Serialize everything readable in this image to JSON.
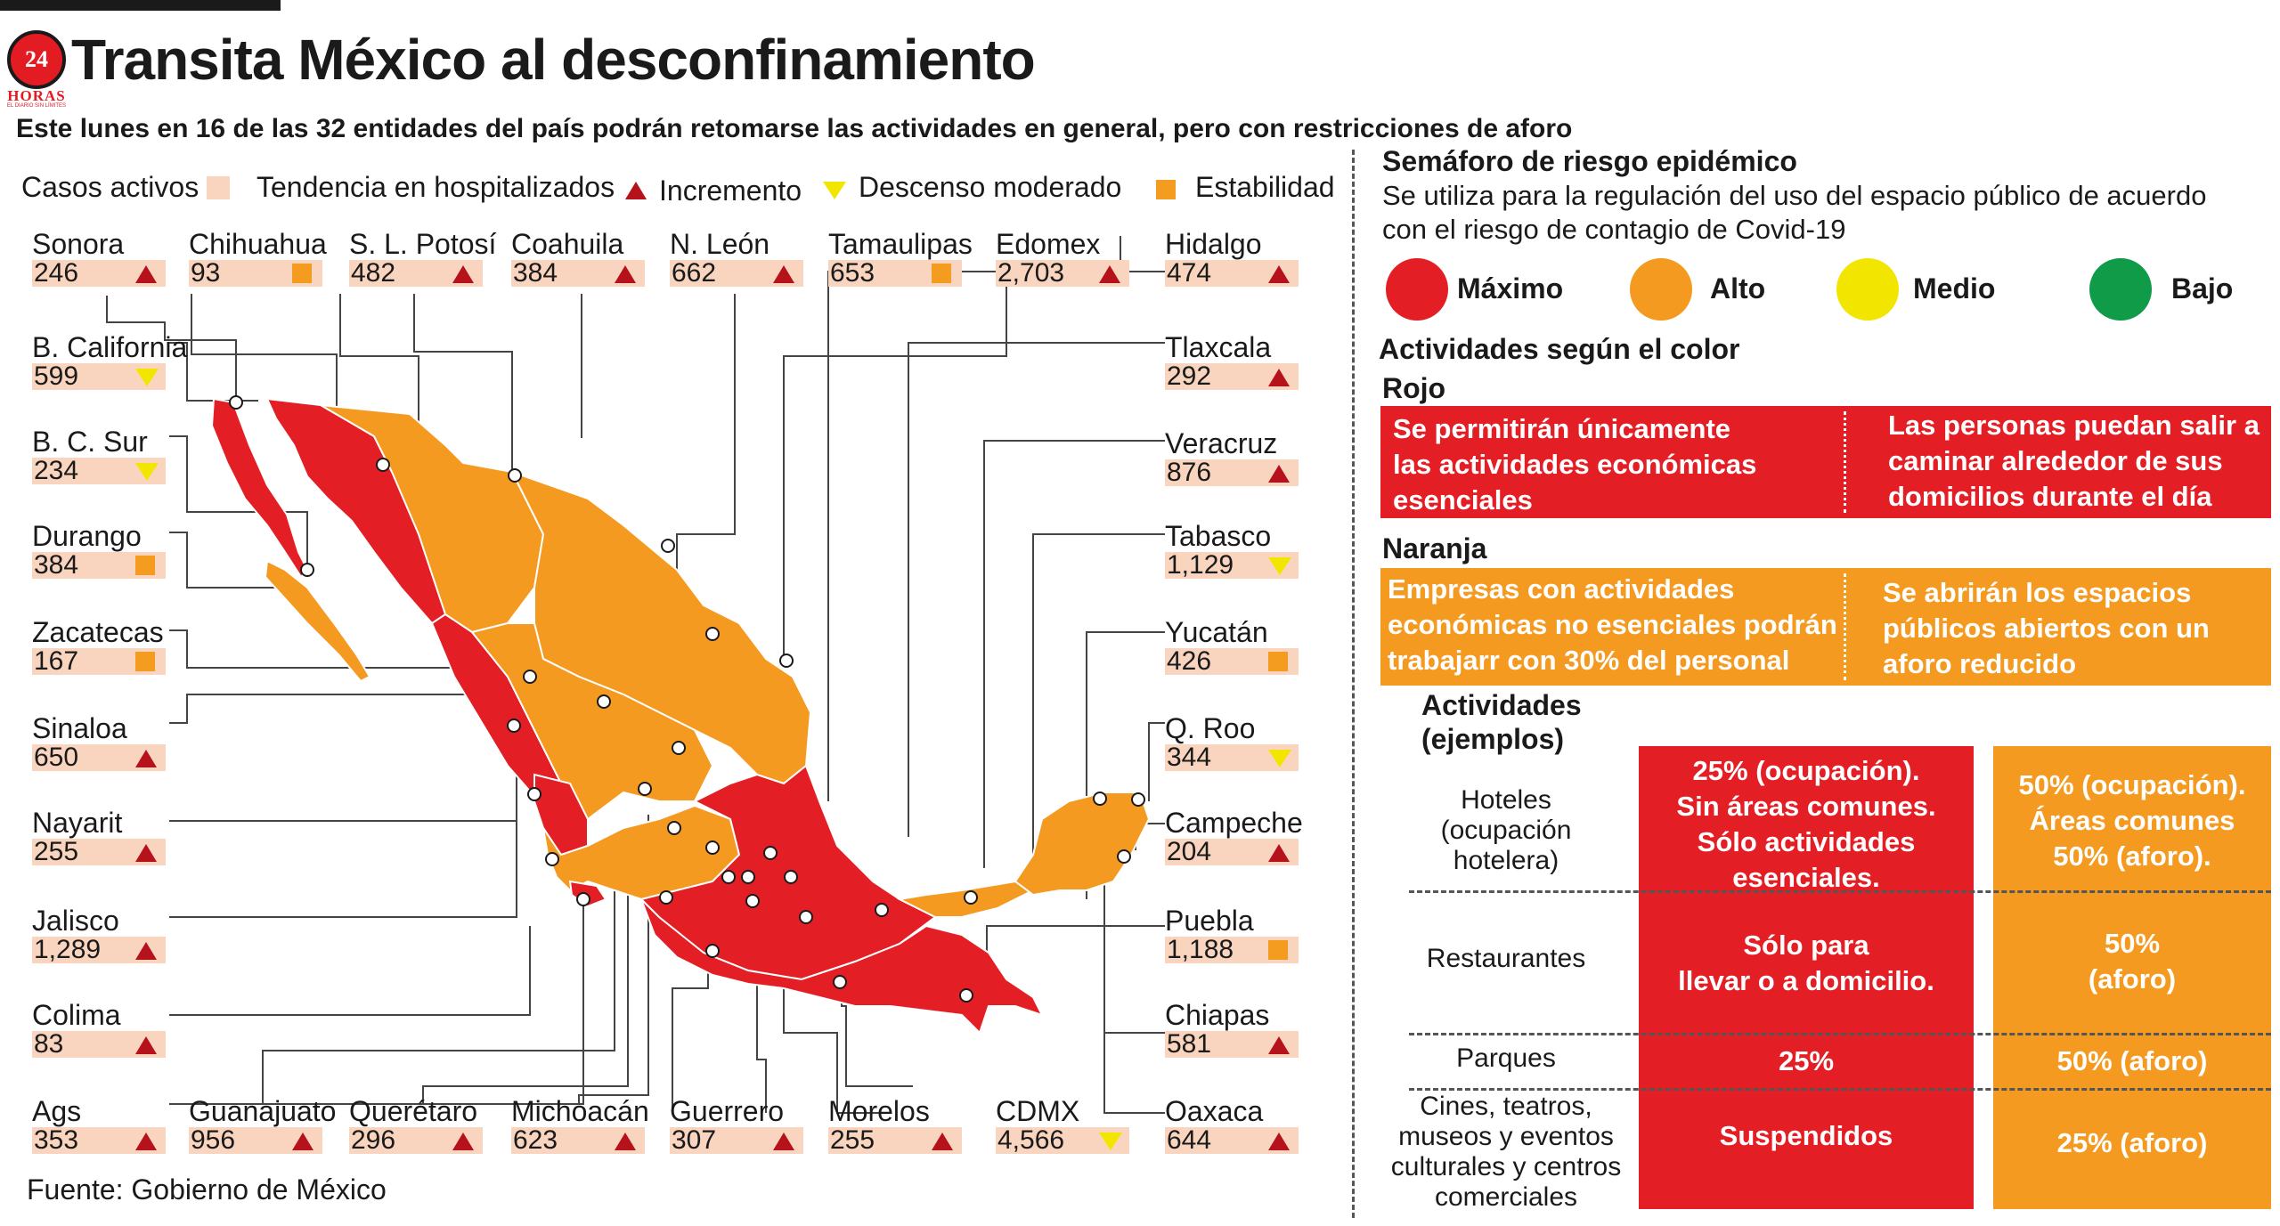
{
  "header": {
    "logo_number": "24",
    "logo_word": "HORAS",
    "logo_tagline": "EL DIARIO SIN LÍMITES",
    "title": "Transita México al desconfinamiento",
    "subtitle": "Este lunes en 16 de las 32 entidades del país podrán retomarse las actividades en general, pero con restricciones de aforo"
  },
  "legend": {
    "active_cases": "Casos activos",
    "trend": "Tendencia en hospitalizados",
    "increase": "Incremento",
    "moderate_decrease": "Descenso moderado",
    "stability": "Estabilidad"
  },
  "colors": {
    "red": "#e41e25",
    "orange": "#f59a20",
    "yellow": "#f2e600",
    "green": "#0f9b48",
    "dark_red": "#b5121b",
    "box": "#f9d5bf"
  },
  "states": [
    {
      "name": "Sonora",
      "value": "246",
      "trend": "up"
    },
    {
      "name": "Chihuahua",
      "value": "93",
      "trend": "flat"
    },
    {
      "name": "S. L. Potosí",
      "value": "482",
      "trend": "up"
    },
    {
      "name": "Coahuila",
      "value": "384",
      "trend": "up"
    },
    {
      "name": "N. León",
      "value": "662",
      "trend": "up"
    },
    {
      "name": "Tamaulipas",
      "value": "653",
      "trend": "flat"
    },
    {
      "name": "Edomex",
      "value": "2,703",
      "trend": "up"
    },
    {
      "name": "Hidalgo",
      "value": "474",
      "trend": "up"
    },
    {
      "name": "B. California",
      "value": "599",
      "trend": "down"
    },
    {
      "name": "Tlaxcala",
      "value": "292",
      "trend": "up"
    },
    {
      "name": "B. C. Sur",
      "value": "234",
      "trend": "down"
    },
    {
      "name": "Veracruz",
      "value": "876",
      "trend": "up"
    },
    {
      "name": "Durango",
      "value": "384",
      "trend": "flat"
    },
    {
      "name": "Tabasco",
      "value": "1,129",
      "trend": "down"
    },
    {
      "name": "Zacatecas",
      "value": "167",
      "trend": "flat"
    },
    {
      "name": "Yucatán",
      "value": "426",
      "trend": "flat"
    },
    {
      "name": "Sinaloa",
      "value": "650",
      "trend": "up"
    },
    {
      "name": "Q. Roo",
      "value": "344",
      "trend": "down"
    },
    {
      "name": "Nayarit",
      "value": "255",
      "trend": "up"
    },
    {
      "name": "Campeche",
      "value": "204",
      "trend": "up"
    },
    {
      "name": "Jalisco",
      "value": "1,289",
      "trend": "up"
    },
    {
      "name": "Puebla",
      "value": "1,188",
      "trend": "flat"
    },
    {
      "name": "Colima",
      "value": "83",
      "trend": "up"
    },
    {
      "name": "Chiapas",
      "value": "581",
      "trend": "up"
    },
    {
      "name": "Ags",
      "value": "353",
      "trend": "up"
    },
    {
      "name": "Guanajuato",
      "value": "956",
      "trend": "up"
    },
    {
      "name": "Querétaro",
      "value": "296",
      "trend": "up"
    },
    {
      "name": "Michoacán",
      "value": "623",
      "trend": "up"
    },
    {
      "name": "Guerrero",
      "value": "307",
      "trend": "up"
    },
    {
      "name": "Morelos",
      "value": "255",
      "trend": "up"
    },
    {
      "name": "CDMX",
      "value": "4,566",
      "trend": "down"
    },
    {
      "name": "Oaxaca",
      "value": "644",
      "trend": "up"
    }
  ],
  "source": "Fuente: Gobierno de México",
  "semaforo": {
    "title": "Semáforo de riesgo epidémico",
    "desc_line1": "Se utiliza para  la regulación del uso del espacio público de acuerdo",
    "desc_line2": "con el riesgo de contagio de Covid-19",
    "levels": {
      "max": "Máximo",
      "high": "Alto",
      "medium": "Medio",
      "low": "Bajo"
    }
  },
  "activities": {
    "title": "Actividades según el color",
    "rojo": "Rojo",
    "rojo_left": [
      "Se permitirán únicamente",
      "las actividades económicas",
      "esenciales"
    ],
    "rojo_right": [
      "Las personas puedan salir a",
      "caminar alrededor de sus",
      "domicilios durante el día"
    ],
    "naranja": "Naranja",
    "naranja_left": [
      "Empresas con actividades",
      "económicas no esenciales podrán",
      "trabajarr con 30% del personal"
    ],
    "naranja_right": [
      "Se abrirán los espacios",
      "públicos abiertos con un",
      "aforo reducido"
    ]
  },
  "examples": {
    "title_line1": "Actividades",
    "title_line2": "(ejemplos)",
    "rows": [
      {
        "label": [
          "Hoteles",
          "(ocupación",
          "hotelera)"
        ],
        "red": [
          "25% (ocupación).",
          "Sin áreas comunes.",
          "Sólo actividades",
          "esenciales."
        ],
        "orange": [
          "50% (ocupación).",
          "Áreas comunes",
          "50% (aforo)."
        ]
      },
      {
        "label": [
          "Restaurantes"
        ],
        "red": [
          "Sólo para",
          "llevar o a domicilio."
        ],
        "orange": [
          "50%",
          "(aforo)"
        ]
      },
      {
        "label": [
          "Parques"
        ],
        "red": [
          "25%"
        ],
        "orange": [
          "50% (aforo)"
        ]
      },
      {
        "label": [
          "Cines, teatros,",
          "museos y eventos",
          "culturales y centros",
          "comerciales"
        ],
        "red": [
          "Suspendidos"
        ],
        "orange": [
          "25% (aforo)"
        ]
      }
    ]
  }
}
